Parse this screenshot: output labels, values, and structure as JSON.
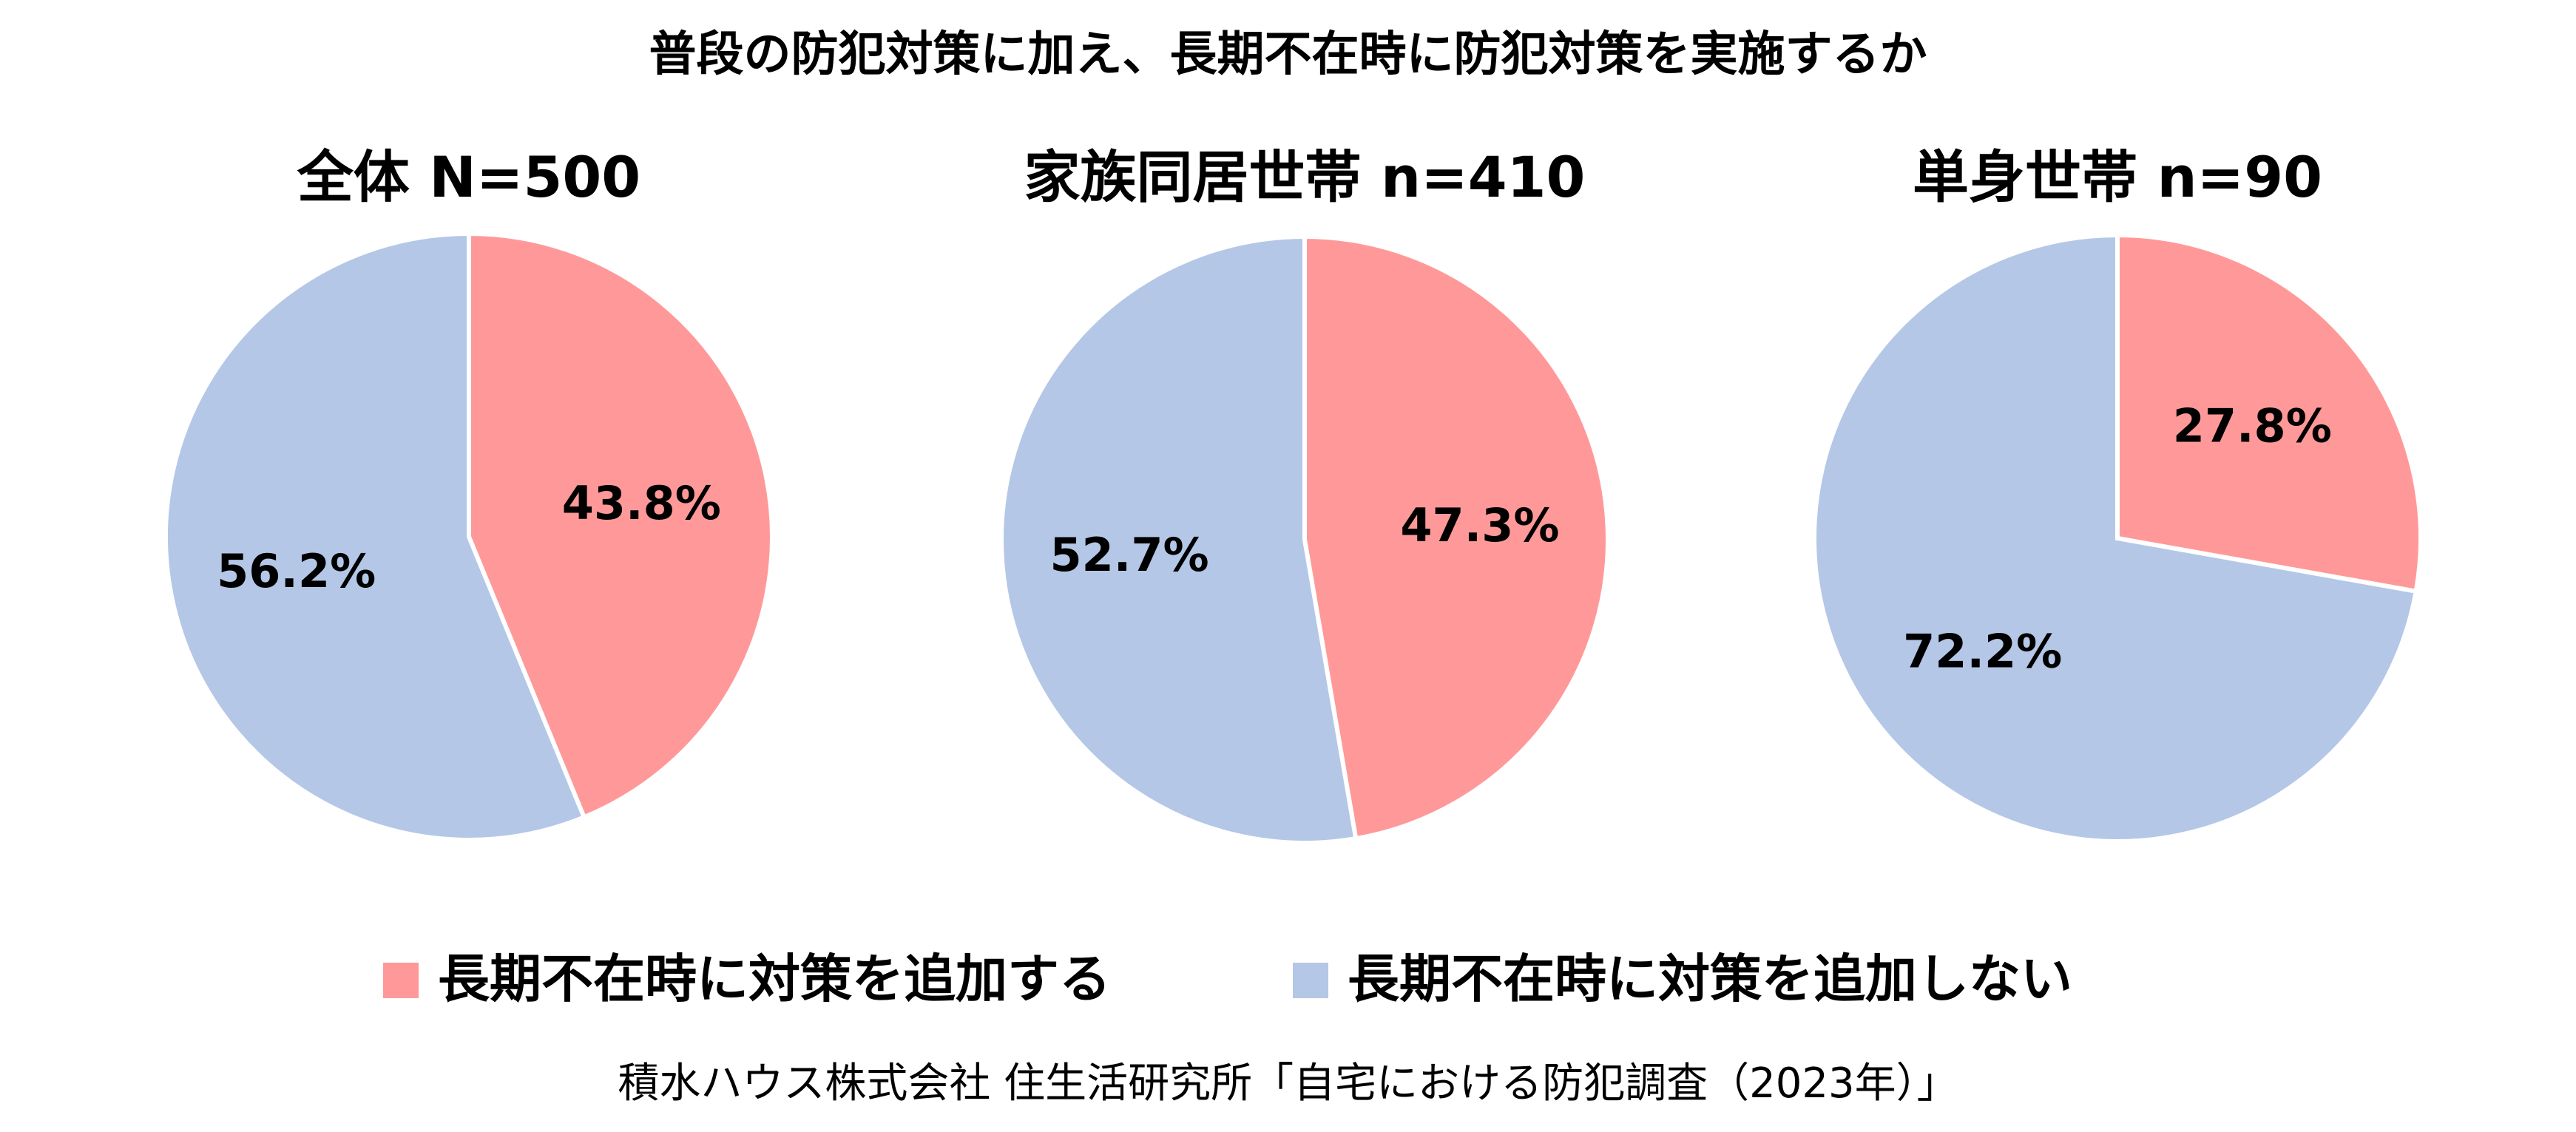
{
  "chart_data": [
    {
      "type": "pie",
      "title": "全体 N=500",
      "categories": [
        "長期不在時に対策を追加する",
        "長期不在時に対策を追加しない"
      ],
      "values": [
        43.8,
        56.2
      ],
      "labels": [
        "43.8%",
        "56.2%"
      ]
    },
    {
      "type": "pie",
      "title": "家族同居世帯 n=410",
      "categories": [
        "長期不在時に対策を追加する",
        "長期不在時に対策を追加しない"
      ],
      "values": [
        47.3,
        52.7
      ],
      "labels": [
        "47.3%",
        "52.7%"
      ]
    },
    {
      "type": "pie",
      "title": "単身世帯 n=90",
      "categories": [
        "長期不在時に対策を追加する",
        "長期不在時に対策を追加しない"
      ],
      "values": [
        27.8,
        72.2
      ],
      "labels": [
        "27.8%",
        "72.2%"
      ]
    }
  ],
  "title": "普段の防犯対策に加え、長期不在時に防犯対策を実施するか",
  "legend": [
    {
      "label": "長期不在時に対策を追加する",
      "color": "#FF9999"
    },
    {
      "label": "長期不在時に対策を追加しない",
      "color": "#B4C7E7"
    }
  ],
  "legend_position": "bottom",
  "start_angle": "12 o'clock, clockwise",
  "footer": "積水ハウス株式会社 住生活研究所「自宅における防犯調査（2023年）」"
}
